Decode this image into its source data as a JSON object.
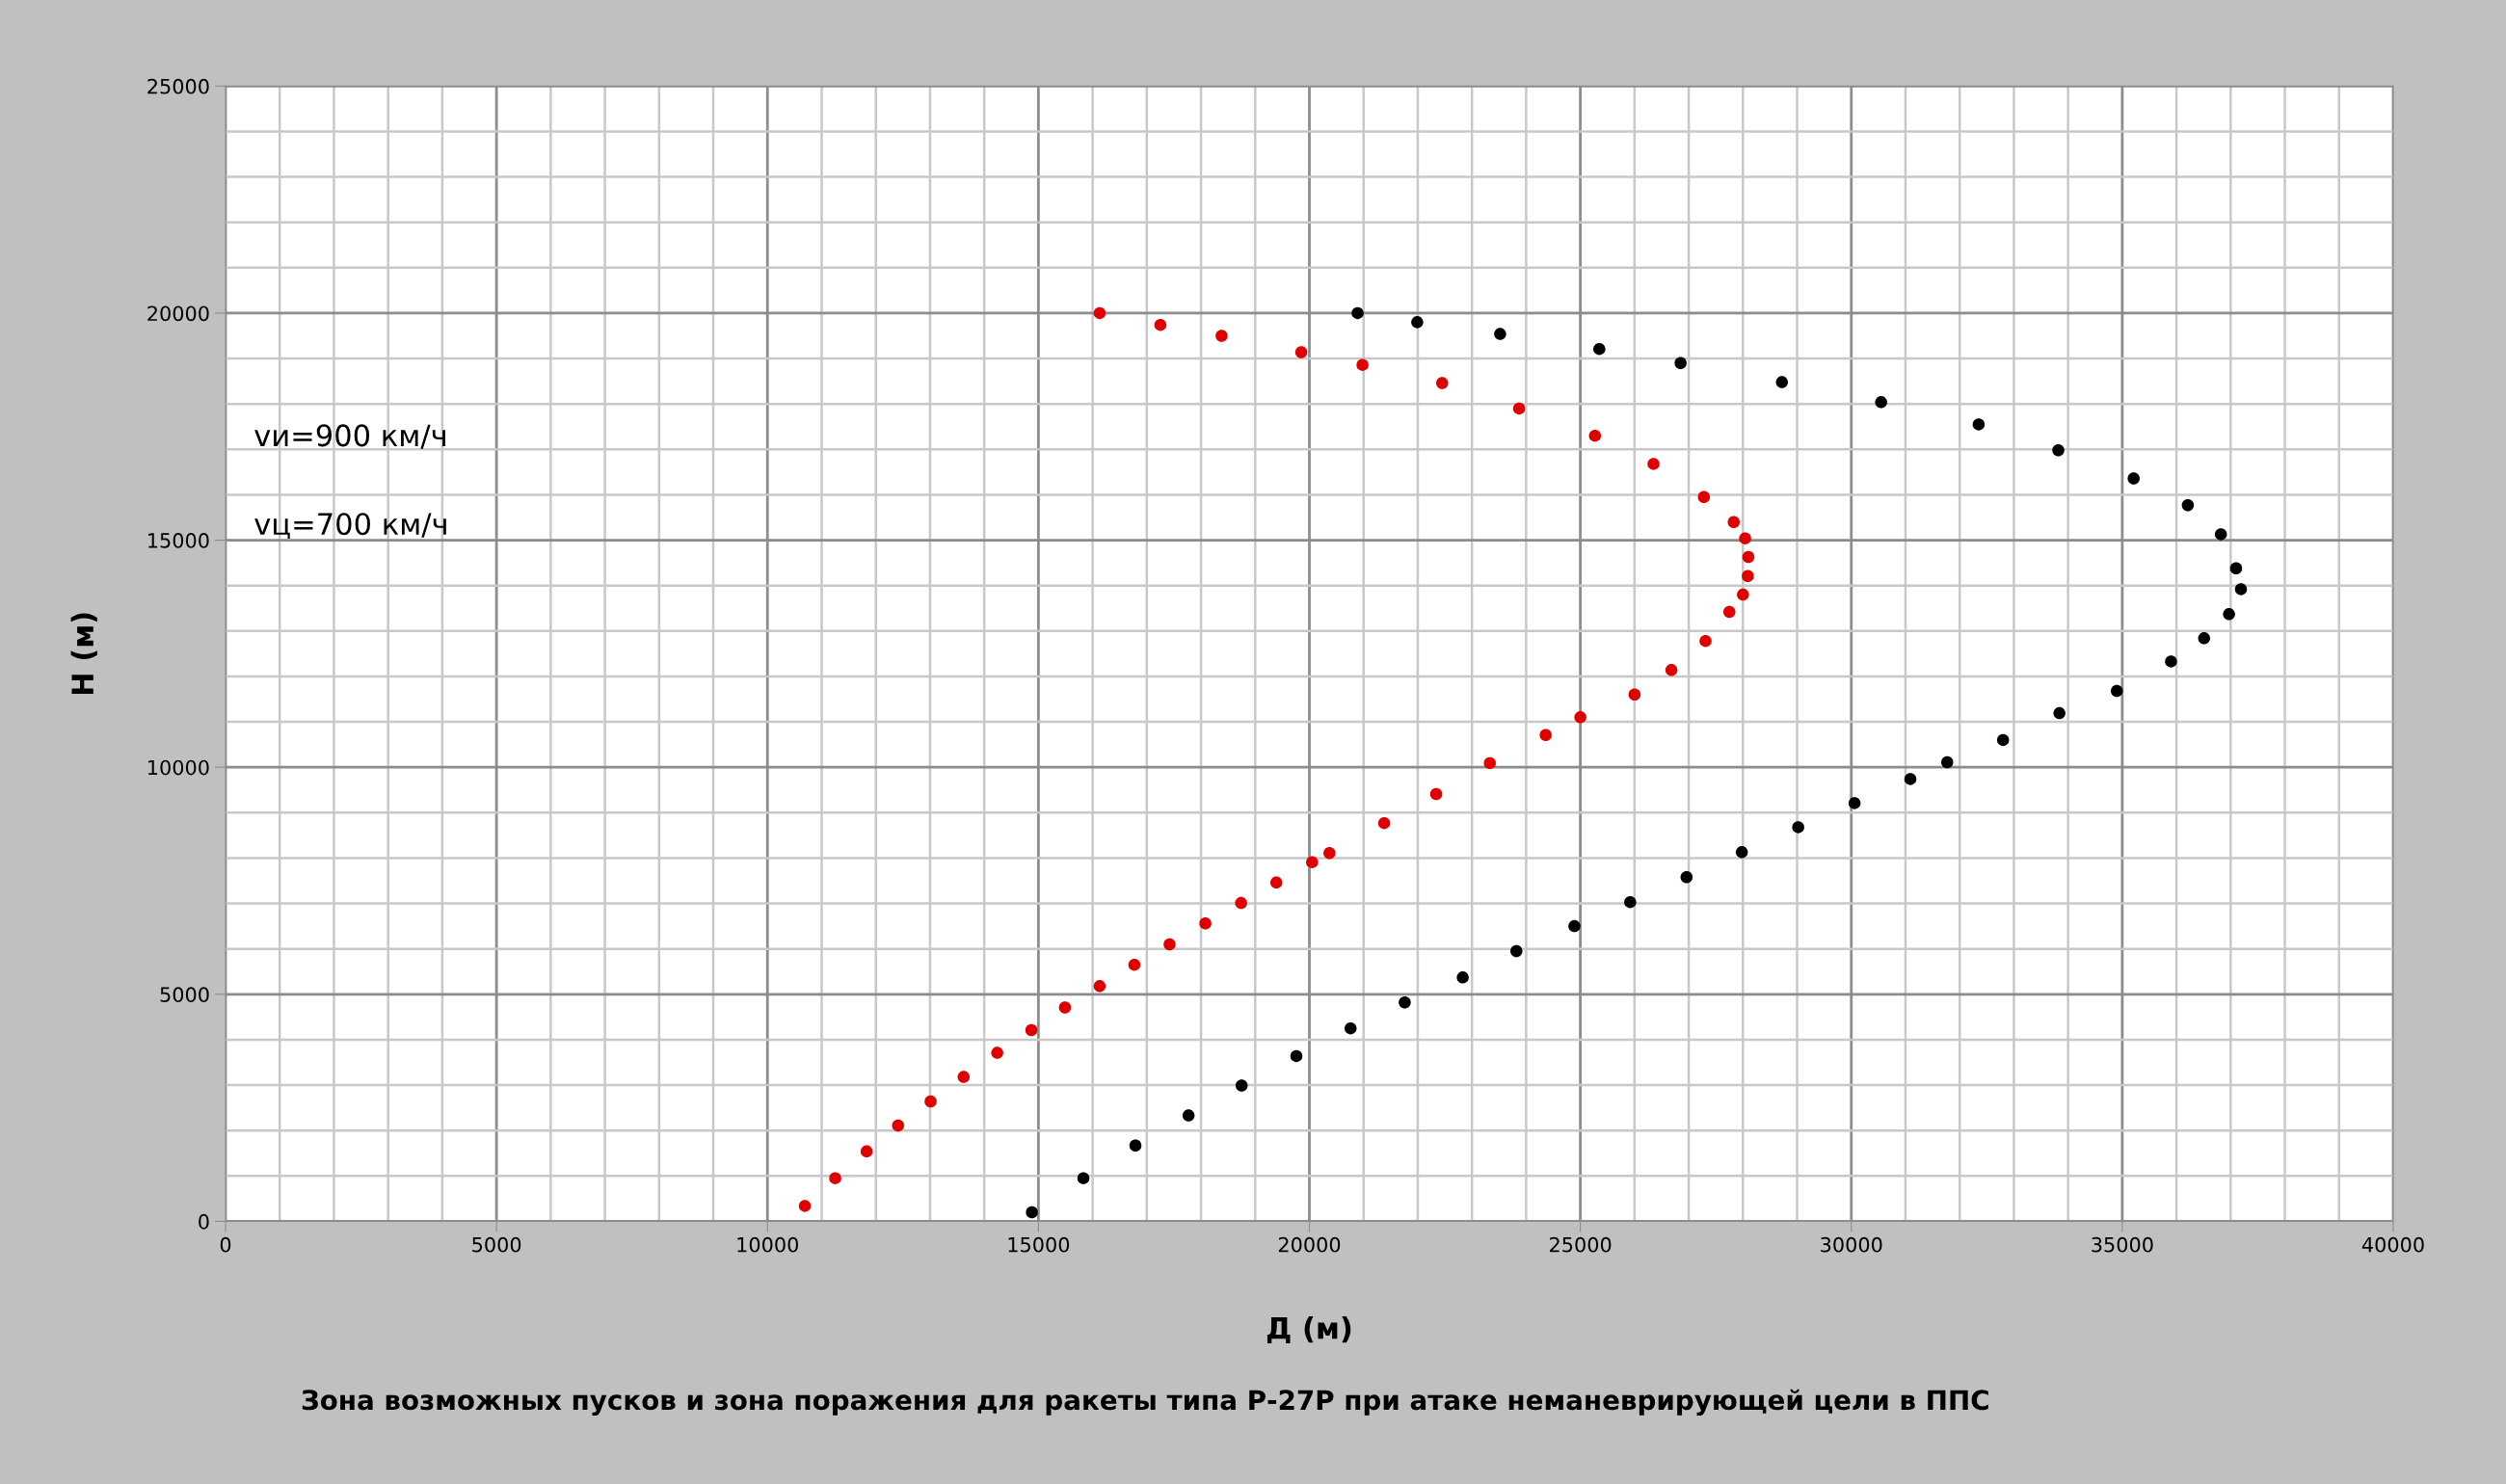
{
  "chart_data": {
    "type": "scatter",
    "title": "Зона возможных пусков и зона поражения для ракеты типа Р-27Р при атаке неманеврирующей цели в ППС",
    "xlabel": "Д (м)",
    "ylabel": "Н (м)",
    "annotations": [
      "vи=900 км/ч",
      "vц=700 км/ч"
    ],
    "xlim": [
      0,
      40000
    ],
    "ylim": [
      0,
      25000
    ],
    "xticks": [
      0,
      5000,
      10000,
      15000,
      20000,
      25000,
      30000,
      35000,
      40000
    ],
    "yticks": [
      0,
      5000,
      10000,
      15000,
      20000,
      25000
    ],
    "grid": true,
    "marker": "circle",
    "series": [
      {
        "color": "#e00000",
        "x": [
          10690,
          11250,
          11830,
          12410,
          13010,
          13620,
          14240,
          14870,
          15490,
          16130,
          16770,
          17420,
          18080,
          18740,
          19390,
          20050,
          20370,
          21380,
          22340,
          23330,
          24360,
          25000,
          26000,
          26680,
          27310,
          27750,
          28000,
          28090,
          28100,
          28040,
          27830,
          27280,
          26350,
          25270,
          23870,
          22450,
          20980,
          19850,
          18380,
          17250,
          16130
        ],
        "values": [
          340,
          950,
          1540,
          2110,
          2640,
          3180,
          3710,
          4210,
          4710,
          5180,
          5650,
          6100,
          6560,
          7010,
          7460,
          7910,
          8110,
          8770,
          9410,
          10090,
          10710,
          11100,
          11600,
          12140,
          12780,
          13420,
          13800,
          14210,
          14630,
          15040,
          15400,
          15950,
          16680,
          17300,
          17900,
          18460,
          18860,
          19140,
          19500,
          19740,
          20000
        ]
      },
      {
        "color": "#000000",
        "x": [
          14880,
          15830,
          16790,
          17770,
          18750,
          19760,
          20760,
          21760,
          22830,
          23820,
          24890,
          25920,
          26960,
          27980,
          29020,
          30060,
          31090,
          31770,
          32800,
          33840,
          34900,
          35900,
          36510,
          36970,
          37190,
          37100,
          36820,
          36210,
          35210,
          33820,
          32350,
          30550,
          28720,
          26850,
          25350,
          23520,
          21990,
          20890
        ],
        "values": [
          200,
          950,
          1670,
          2330,
          2990,
          3640,
          4250,
          4820,
          5370,
          5950,
          6500,
          7030,
          7580,
          8130,
          8680,
          9210,
          9740,
          10110,
          10600,
          11190,
          11680,
          12330,
          12840,
          13370,
          13920,
          14380,
          15130,
          15770,
          16360,
          16980,
          17550,
          18040,
          18480,
          18900,
          19210,
          19540,
          19800,
          20000
        ]
      }
    ]
  }
}
